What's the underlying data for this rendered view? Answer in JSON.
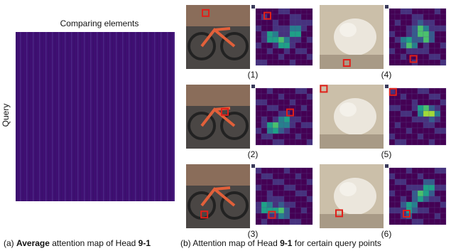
{
  "left": {
    "x_label": "Comparing elements",
    "y_label": "Query",
    "caption": {
      "prefix": "(a) ",
      "bold1": "Average",
      "middle": " attention map of Head ",
      "bold2": "9-1"
    }
  },
  "right": {
    "panels": [
      "(1)",
      "(2)",
      "(3)",
      "(4)",
      "(5)",
      "(6)"
    ],
    "caption": {
      "prefix": "(b) Attention map of Head ",
      "bold": "9-1",
      "suffix": " for certain query points"
    }
  }
}
